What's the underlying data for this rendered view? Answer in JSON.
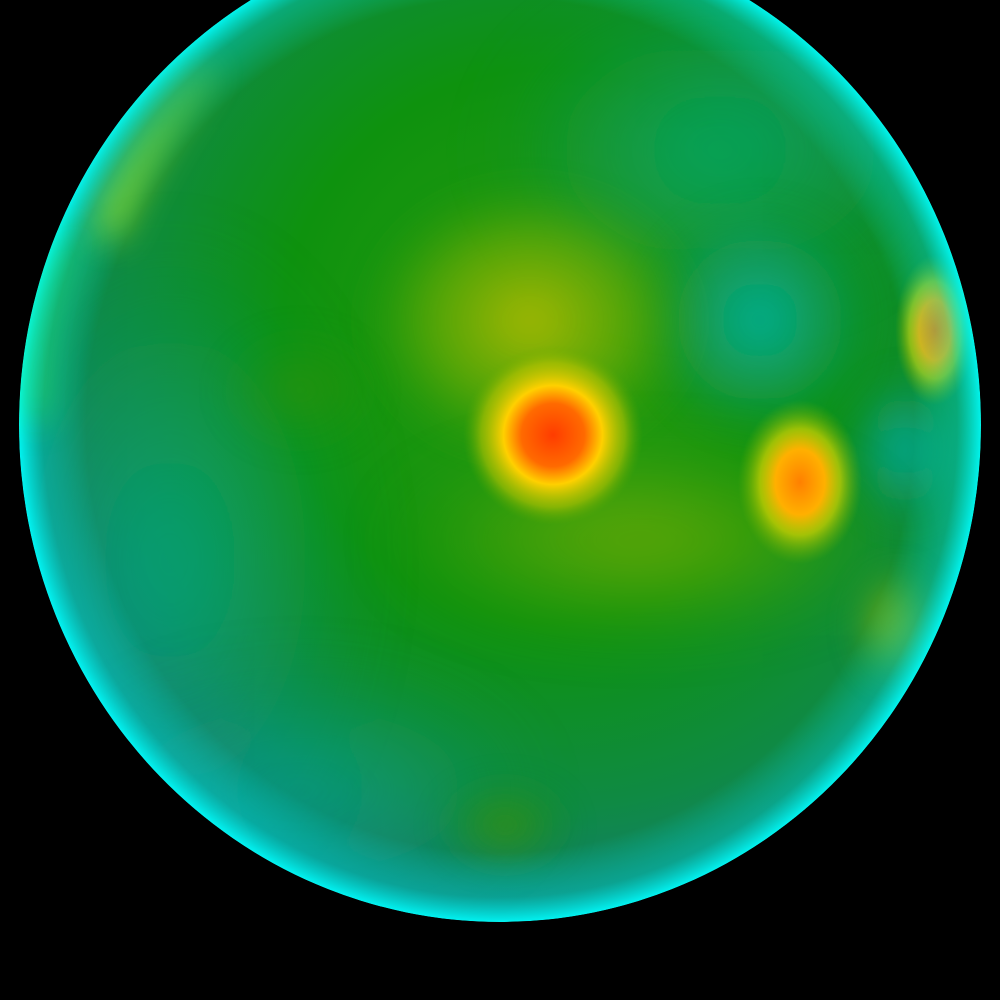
{
  "scene": {
    "background_color": "#000000",
    "subject": "colormapped-sphere",
    "colormap": [
      "#00ffff",
      "#008c8c",
      "#009a10",
      "#cccc00",
      "#ffee00",
      "#ff8c00",
      "#ff3c00"
    ]
  }
}
